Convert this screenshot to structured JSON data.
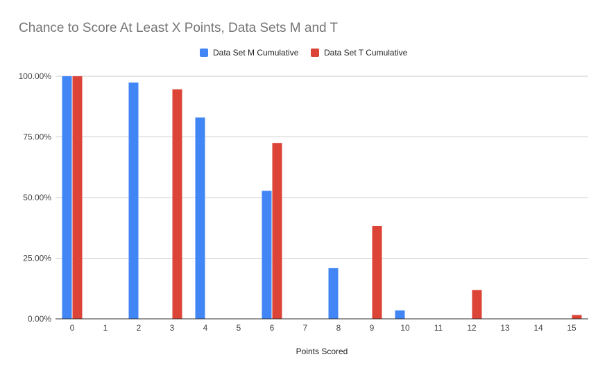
{
  "chart_data": {
    "type": "bar",
    "title": "Chance to Score At Least X Points, Data Sets M and T",
    "xlabel": "Points Scored",
    "ylabel": "",
    "categories": [
      "0",
      "1",
      "2",
      "3",
      "4",
      "5",
      "6",
      "7",
      "8",
      "9",
      "10",
      "11",
      "12",
      "13",
      "14",
      "15"
    ],
    "series": [
      {
        "name": "Data Set M Cumulative",
        "color": "#4285f4",
        "values": [
          100,
          0,
          97.4,
          0,
          83.0,
          0,
          52.8,
          0,
          20.9,
          0,
          3.5,
          0,
          0,
          0,
          0,
          0
        ]
      },
      {
        "name": "Data Set T Cumulative",
        "color": "#db4437",
        "values": [
          100,
          0,
          0,
          94.6,
          0,
          0,
          72.5,
          0,
          0,
          38.3,
          0,
          0,
          11.9,
          0,
          0,
          1.6
        ]
      }
    ],
    "ylim": [
      0,
      100
    ],
    "yticks": [
      "0.00%",
      "25.00%",
      "50.00%",
      "75.00%",
      "100.00%"
    ],
    "ytick_values": [
      0,
      25,
      50,
      75,
      100
    ],
    "grid": true,
    "legend_position": "top"
  }
}
